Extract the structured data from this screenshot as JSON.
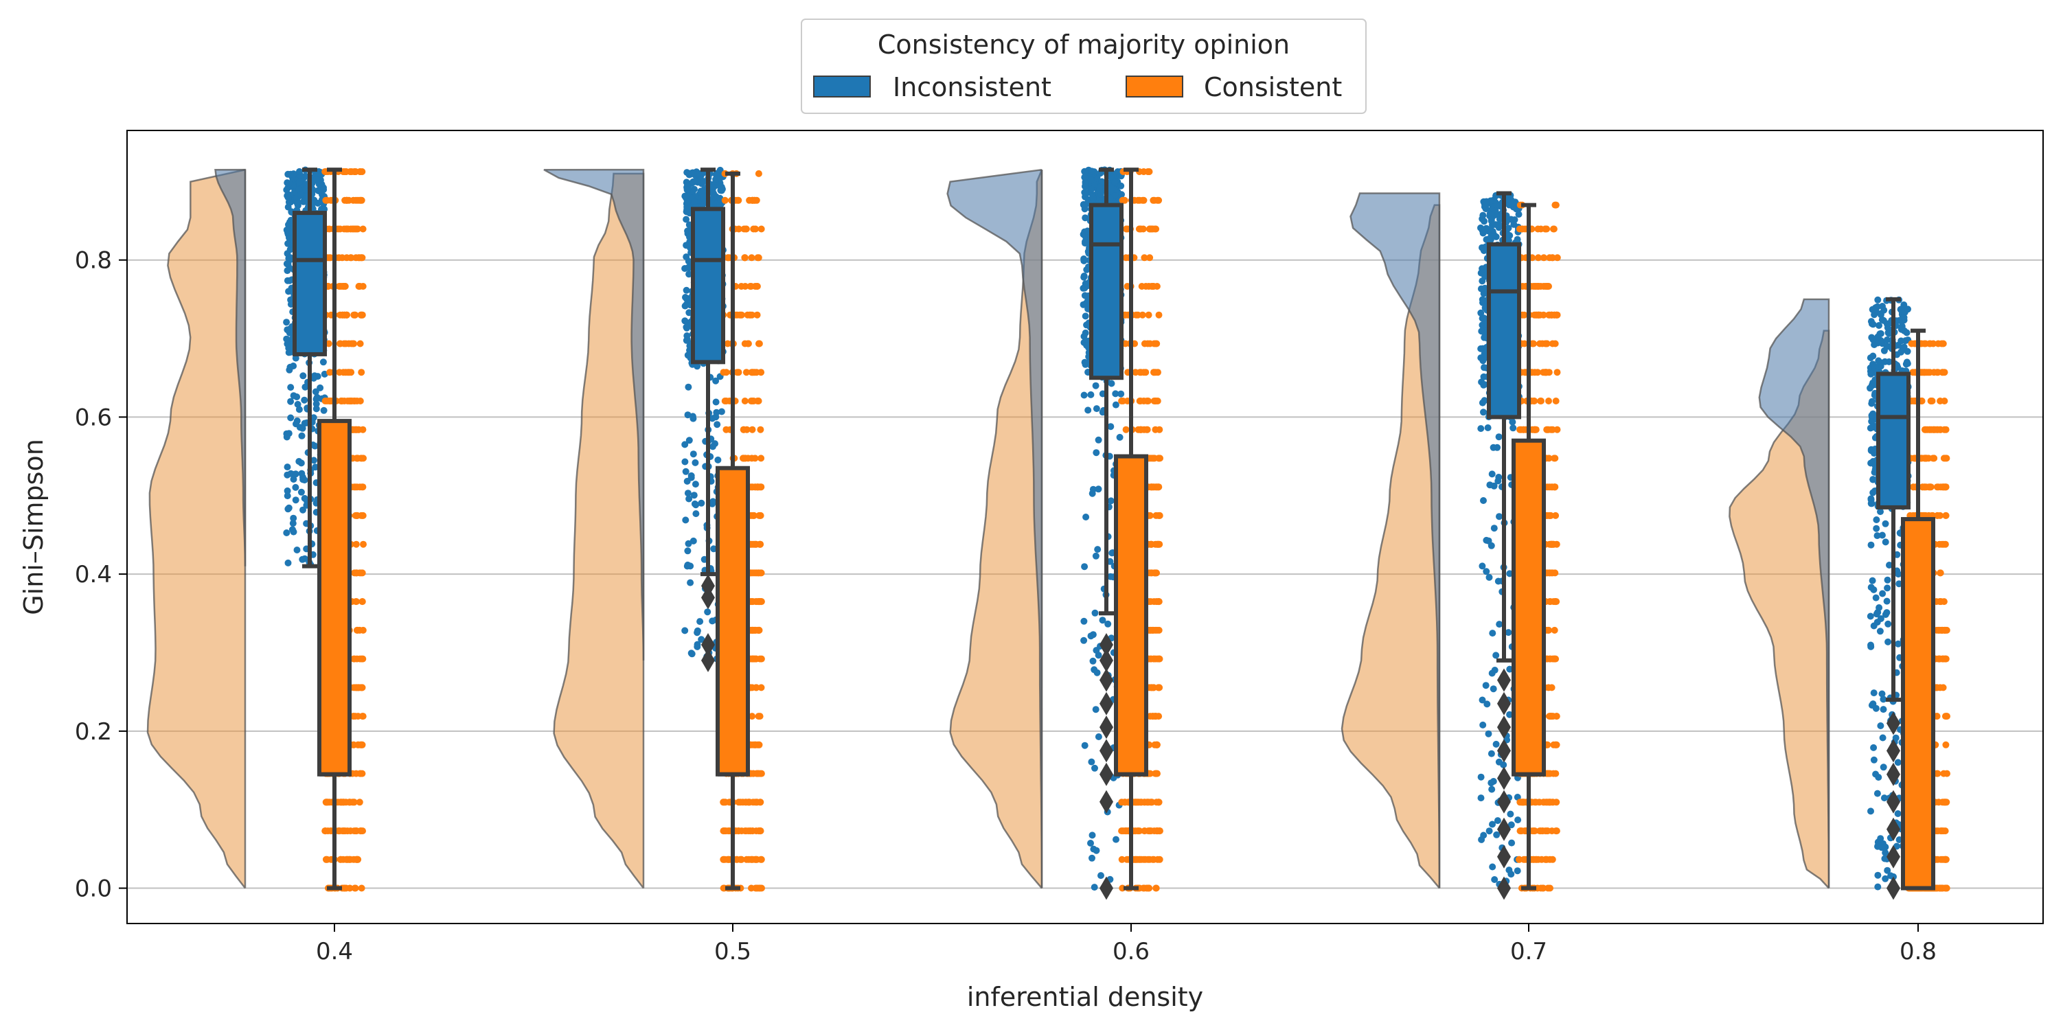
{
  "chart_data": {
    "type": "raincloud",
    "xlabel": "inferential density",
    "ylabel": "Gini–Simpson",
    "ylim": [
      -0.045,
      0.965
    ],
    "yticks": [
      "0.0",
      "0.2",
      "0.4",
      "0.6",
      "0.8"
    ],
    "grid": "horizontal",
    "categories": [
      "0.4",
      "0.5",
      "0.6",
      "0.7",
      "0.8"
    ],
    "legend": {
      "title": "Consistency of majority opinion",
      "placement": "top-center",
      "entries": [
        "Inconsistent",
        "Consistent"
      ]
    },
    "colors": {
      "Inconsistent": "#1f77b4",
      "Consistent": "#ff7f0e",
      "inconsistent_violin": "#4d78a8",
      "consistent_violin": "#e8913a",
      "box_edge": "#3d3d3d"
    },
    "series": [
      {
        "name": "Inconsistent",
        "boxes": [
          {
            "whisker_low": 0.41,
            "q1": 0.68,
            "median": 0.8,
            "q3": 0.86,
            "whisker_high": 0.915,
            "outliers": []
          },
          {
            "whisker_low": 0.4,
            "q1": 0.67,
            "median": 0.8,
            "q3": 0.865,
            "whisker_high": 0.915,
            "outliers": [
              0.37,
              0.385,
              0.29,
              0.31
            ]
          },
          {
            "whisker_low": 0.35,
            "q1": 0.65,
            "median": 0.82,
            "q3": 0.87,
            "whisker_high": 0.915,
            "outliers": [
              0.0,
              0.11,
              0.145,
              0.175,
              0.205,
              0.235,
              0.265,
              0.29,
              0.31
            ]
          },
          {
            "whisker_low": 0.29,
            "q1": 0.6,
            "median": 0.76,
            "q3": 0.82,
            "whisker_high": 0.885,
            "outliers": [
              0.0,
              0.04,
              0.075,
              0.11,
              0.14,
              0.175,
              0.205,
              0.235,
              0.265
            ]
          },
          {
            "whisker_low": 0.24,
            "q1": 0.485,
            "median": 0.6,
            "q3": 0.655,
            "whisker_high": 0.75,
            "outliers": [
              0.0,
              0.04,
              0.075,
              0.11,
              0.145,
              0.175,
              0.21
            ]
          }
        ],
        "points_range": [
          [
            0.41,
            0.915
          ],
          [
            0.29,
            0.915
          ],
          [
            0.0,
            0.915
          ],
          [
            0.0,
            0.885
          ],
          [
            0.0,
            0.75
          ]
        ],
        "density": [
          [
            [
              0.41,
              0.0
            ],
            [
              0.5,
              0.02
            ],
            [
              0.6,
              0.04
            ],
            [
              0.7,
              0.09
            ],
            [
              0.8,
              0.08
            ],
            [
              0.85,
              0.12
            ],
            [
              0.915,
              0.3
            ]
          ],
          [
            [
              0.29,
              0.0
            ],
            [
              0.4,
              0.02
            ],
            [
              0.55,
              0.05
            ],
            [
              0.7,
              0.12
            ],
            [
              0.8,
              0.1
            ],
            [
              0.88,
              0.3
            ],
            [
              0.915,
              1.0
            ]
          ],
          [
            [
              0.0,
              0.0
            ],
            [
              0.3,
              0.02
            ],
            [
              0.5,
              0.08
            ],
            [
              0.7,
              0.12
            ],
            [
              0.8,
              0.2
            ],
            [
              0.88,
              0.95
            ],
            [
              0.915,
              0.9
            ]
          ],
          [
            [
              0.0,
              0.0
            ],
            [
              0.3,
              0.02
            ],
            [
              0.5,
              0.08
            ],
            [
              0.7,
              0.2
            ],
            [
              0.8,
              0.55
            ],
            [
              0.85,
              0.9
            ],
            [
              0.885,
              0.8
            ]
          ],
          [
            [
              0.0,
              0.0
            ],
            [
              0.3,
              0.02
            ],
            [
              0.45,
              0.1
            ],
            [
              0.55,
              0.25
            ],
            [
              0.62,
              0.7
            ],
            [
              0.68,
              0.6
            ],
            [
              0.75,
              0.25
            ]
          ]
        ]
      },
      {
        "name": "Consistent",
        "boxes": [
          {
            "whisker_low": 0.0,
            "q1": 0.145,
            "median": 0.145,
            "q3": 0.595,
            "whisker_high": 0.915,
            "outliers": []
          },
          {
            "whisker_low": 0.0,
            "q1": 0.145,
            "median": 0.145,
            "q3": 0.535,
            "whisker_high": 0.91,
            "outliers": []
          },
          {
            "whisker_low": 0.0,
            "q1": 0.145,
            "median": 0.145,
            "q3": 0.55,
            "whisker_high": 0.915,
            "outliers": []
          },
          {
            "whisker_low": 0.0,
            "q1": 0.145,
            "median": 0.145,
            "q3": 0.57,
            "whisker_high": 0.87,
            "outliers": []
          },
          {
            "whisker_low": 0.0,
            "q1": 0.0,
            "median": 0.0,
            "q3": 0.47,
            "whisker_high": 0.71,
            "outliers": []
          }
        ],
        "points_range": [
          [
            0.0,
            0.915
          ],
          [
            0.0,
            0.91
          ],
          [
            0.0,
            0.915
          ],
          [
            0.0,
            0.87
          ],
          [
            0.0,
            0.71
          ]
        ],
        "density": [
          [
            [
              0.0,
              0.0
            ],
            [
              0.03,
              0.18
            ],
            [
              0.1,
              0.45
            ],
            [
              0.2,
              0.98
            ],
            [
              0.3,
              0.9
            ],
            [
              0.4,
              0.92
            ],
            [
              0.5,
              0.96
            ],
            [
              0.6,
              0.75
            ],
            [
              0.7,
              0.55
            ],
            [
              0.8,
              0.78
            ],
            [
              0.85,
              0.55
            ],
            [
              0.915,
              0.55
            ]
          ],
          [
            [
              0.0,
              0.0
            ],
            [
              0.03,
              0.18
            ],
            [
              0.1,
              0.5
            ],
            [
              0.2,
              0.9
            ],
            [
              0.3,
              0.75
            ],
            [
              0.4,
              0.7
            ],
            [
              0.5,
              0.68
            ],
            [
              0.6,
              0.62
            ],
            [
              0.7,
              0.55
            ],
            [
              0.8,
              0.5
            ],
            [
              0.85,
              0.35
            ],
            [
              0.91,
              0.3
            ]
          ],
          [
            [
              0.0,
              0.0
            ],
            [
              0.03,
              0.2
            ],
            [
              0.1,
              0.45
            ],
            [
              0.2,
              0.92
            ],
            [
              0.3,
              0.72
            ],
            [
              0.4,
              0.62
            ],
            [
              0.5,
              0.55
            ],
            [
              0.6,
              0.45
            ],
            [
              0.7,
              0.22
            ],
            [
              0.8,
              0.18
            ],
            [
              0.88,
              0.05
            ],
            [
              0.915,
              0.05
            ]
          ],
          [
            [
              0.0,
              0.0
            ],
            [
              0.03,
              0.2
            ],
            [
              0.1,
              0.45
            ],
            [
              0.2,
              0.98
            ],
            [
              0.3,
              0.78
            ],
            [
              0.4,
              0.62
            ],
            [
              0.5,
              0.5
            ],
            [
              0.6,
              0.38
            ],
            [
              0.7,
              0.35
            ],
            [
              0.8,
              0.2
            ],
            [
              0.85,
              0.1
            ],
            [
              0.87,
              0.05
            ]
          ],
          [
            [
              0.0,
              0.0
            ],
            [
              0.03,
              0.25
            ],
            [
              0.1,
              0.35
            ],
            [
              0.2,
              0.45
            ],
            [
              0.3,
              0.55
            ],
            [
              0.4,
              0.85
            ],
            [
              0.48,
              1.0
            ],
            [
              0.55,
              0.6
            ],
            [
              0.62,
              0.3
            ],
            [
              0.68,
              0.1
            ],
            [
              0.71,
              0.05
            ]
          ]
        ]
      }
    ]
  }
}
